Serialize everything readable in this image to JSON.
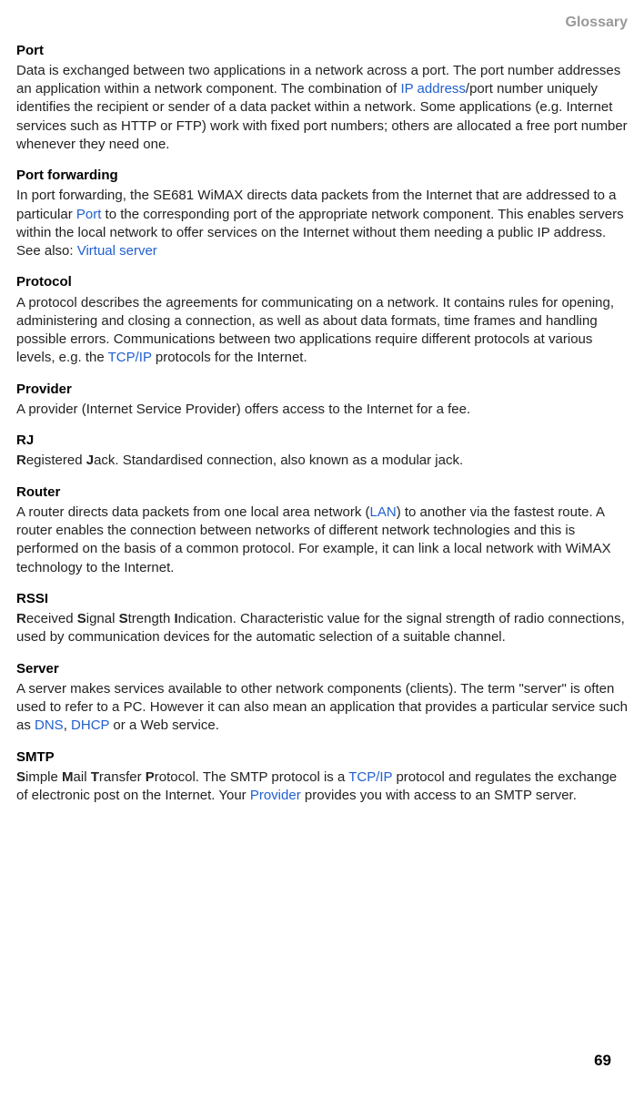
{
  "header": {
    "title": "Glossary"
  },
  "entries": {
    "port": {
      "term": "Port",
      "def_pre": "Data is exchanged between two applications in a network across a port. The port number addresses an application within a network component. The combination of ",
      "link1": "IP address",
      "def_post": "/port number uniquely identifies the recipient or sender of a data packet within a network. Some applications (e.g. Internet services such as HTTP or FTP) work with fixed port numbers; others are allocated a free port number whenever they need one."
    },
    "portfwd": {
      "term": "Port forwarding",
      "def_pre": "In port forwarding, the SE681 WiMAX directs data packets from the Internet that are addressed to a particular ",
      "link1": "Port",
      "def_mid": " to the corresponding port of the appropriate network component. This enables servers within the local network to offer services on the Internet without them needing a public IP address. See also: ",
      "link2": "Virtual server"
    },
    "protocol": {
      "term": "Protocol",
      "def_pre": "A protocol describes the agreements for communicating on a network. It contains rules for opening, administering and closing a connection, as well as about data formats, time frames and handling possible errors. Communications between two applications require different protocols at various levels, e.g. the ",
      "link1": "TCP/IP",
      "def_post": " protocols for the Internet."
    },
    "provider": {
      "term": "Provider",
      "def": "A provider (Internet Service Provider) offers access to the Internet for a fee."
    },
    "rj": {
      "term": "RJ",
      "b1": "R",
      "t1": "egistered ",
      "b2": "J",
      "t2": "ack. Standardised connection, also known as a modular jack."
    },
    "router": {
      "term": "Router",
      "def_pre": "A router directs data packets from one local area network (",
      "link1": "LAN",
      "def_post": ") to another via the fastest route. A router enables the connection between networks of different network technologies and this is performed on the basis of a common protocol. For example, it can link a local network with WiMAX technology to the Internet."
    },
    "rssi": {
      "term": "RSSI",
      "b1": "R",
      "t1": "eceived ",
      "b2": "S",
      "t2": "ignal ",
      "b3": "S",
      "t3": "trength ",
      "b4": "I",
      "t4": "ndication. Characteristic value for the signal strength of radio connections, used by communication devices for the automatic selection of a suitable channel."
    },
    "server": {
      "term": "Server",
      "def_pre": "A server makes services available to other network components (clients). The term \"server\" is often used to refer to a PC. However it can also mean an application that provides a particular service such as ",
      "link1": "DNS",
      "comma": ", ",
      "link2": "DHCP",
      "def_post": " or a Web service."
    },
    "smtp": {
      "term": "SMTP",
      "b1": "S",
      "t1": "imple ",
      "b2": "M",
      "t2": "ail ",
      "b3": "T",
      "t3": "ransfer ",
      "b4": "P",
      "t4": "rotocol. The SMTP protocol is a ",
      "link1": "TCP/IP",
      "mid": " protocol and regulates the exchange of electronic post on the Internet. Your ",
      "link2": "Provider",
      "def_post": " provides you with access to an SMTP server."
    }
  },
  "pagenum": "69",
  "colors": {
    "header": "#999999",
    "link": "#2060d0",
    "text": "#000000"
  }
}
